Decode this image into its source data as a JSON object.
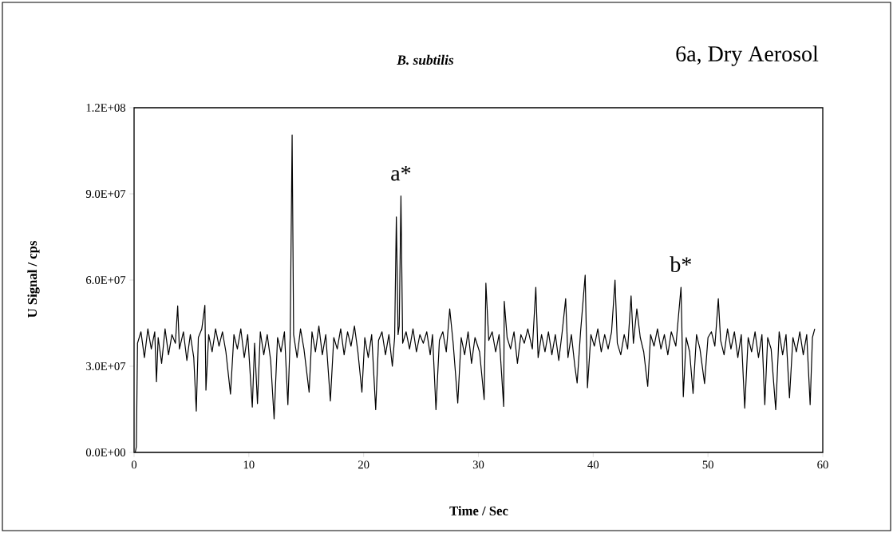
{
  "chart_data": {
    "type": "line",
    "title": "6a, Dry Aerosol",
    "subtitle": "B. subtilis",
    "xlabel": "Time / Sec",
    "ylabel": "U Signal / cps",
    "xlim": [
      0,
      60
    ],
    "xticks": [
      0,
      10,
      20,
      30,
      40,
      50,
      60
    ],
    "ylim": [
      0,
      120000000.0
    ],
    "yticks": [
      {
        "value": 0,
        "label": "0.0E+00"
      },
      {
        "value": 30000000.0,
        "label": "3.0E+07"
      },
      {
        "value": 60000000.0,
        "label": "6.0E+07"
      },
      {
        "value": 90000000.0,
        "label": "9.0E+07"
      },
      {
        "value": 120000000.0,
        "label": "1.2E+08"
      }
    ],
    "grid": false,
    "marker": "none",
    "line_style": "solid",
    "annotations": [
      {
        "text": "a*",
        "x": 23.25,
        "y": 89300000.0
      },
      {
        "text": "b*",
        "x": 47.65,
        "y": 57500000.0
      }
    ],
    "series": [
      {
        "color": "#000000",
        "x": [
          0.1,
          0.2,
          0.3,
          0.6,
          0.9,
          1.2,
          1.5,
          1.8,
          1.95,
          2.1,
          2.4,
          2.7,
          3.0,
          3.3,
          3.6,
          3.8,
          3.95,
          4.3,
          4.6,
          4.9,
          5.2,
          5.42,
          5.6,
          5.9,
          6.17,
          6.26,
          6.5,
          6.8,
          7.1,
          7.4,
          7.7,
          8.0,
          8.4,
          8.7,
          9.0,
          9.3,
          9.6,
          9.9,
          10.3,
          10.5,
          10.75,
          11.0,
          11.3,
          11.6,
          11.9,
          12.2,
          12.5,
          12.8,
          13.1,
          13.4,
          13.6,
          13.77,
          13.9,
          14.2,
          14.5,
          14.8,
          15.25,
          15.5,
          15.8,
          16.1,
          16.4,
          16.7,
          17.1,
          17.4,
          17.7,
          18.0,
          18.3,
          18.6,
          18.9,
          19.2,
          19.5,
          19.85,
          20.1,
          20.4,
          20.7,
          21.05,
          21.3,
          21.6,
          21.9,
          22.2,
          22.5,
          22.7,
          22.85,
          23.0,
          23.1,
          23.25,
          23.4,
          23.7,
          24.0,
          24.3,
          24.6,
          24.9,
          25.2,
          25.5,
          25.8,
          26.0,
          26.3,
          26.6,
          26.9,
          27.2,
          27.5,
          27.8,
          28.2,
          28.5,
          28.8,
          29.1,
          29.4,
          29.7,
          30.1,
          30.5,
          30.65,
          30.9,
          31.2,
          31.5,
          31.8,
          32.2,
          32.25,
          32.5,
          32.8,
          33.1,
          33.4,
          33.7,
          34.0,
          34.3,
          34.7,
          35.0,
          35.2,
          35.5,
          35.8,
          36.1,
          36.4,
          36.7,
          37.0,
          37.3,
          37.6,
          37.8,
          38.1,
          38.4,
          38.6,
          38.9,
          39.3,
          39.5,
          39.8,
          40.1,
          40.4,
          40.7,
          41.0,
          41.3,
          41.6,
          41.9,
          42.1,
          42.4,
          42.7,
          43.0,
          43.3,
          43.5,
          43.8,
          44.1,
          44.4,
          44.75,
          45.0,
          45.3,
          45.6,
          45.9,
          46.2,
          46.5,
          46.8,
          47.2,
          47.65,
          47.85,
          48.1,
          48.4,
          48.7,
          49.0,
          49.3,
          49.7,
          50.0,
          50.3,
          50.6,
          50.9,
          51.1,
          51.4,
          51.7,
          52.0,
          52.3,
          52.6,
          52.9,
          53.2,
          53.5,
          53.8,
          54.1,
          54.4,
          54.7,
          54.95,
          55.2,
          55.5,
          55.9,
          56.2,
          56.5,
          56.8,
          57.1,
          57.4,
          57.7,
          58.0,
          58.3,
          58.6,
          58.9,
          59.1,
          59.3
        ],
        "values": [
          0,
          2000000.0,
          38000000.0,
          42000000.0,
          33000000.0,
          43000000.0,
          36000000.0,
          42000000.0,
          24600000.0,
          40000000.0,
          31000000.0,
          43000000.0,
          34000000.0,
          41000000.0,
          38000000.0,
          51000000.0,
          36000000.0,
          42000000.0,
          32000000.0,
          41000000.0,
          33000000.0,
          14400000.0,
          40000000.0,
          43000000.0,
          51200000.0,
          21700000.0,
          41000000.0,
          35000000.0,
          43000000.0,
          37000000.0,
          42000000.0,
          35000000.0,
          20300000.0,
          41000000.0,
          36000000.0,
          43000000.0,
          33000000.0,
          41000000.0,
          15800000.0,
          38000000.0,
          17000000.0,
          42000000.0,
          34000000.0,
          41000000.0,
          32000000.0,
          11700000.0,
          40000000.0,
          35000000.0,
          42000000.0,
          16600000.0,
          40000000.0,
          110500000.0,
          41000000.0,
          33000000.0,
          43000000.0,
          36000000.0,
          21000000.0,
          42000000.0,
          35000000.0,
          44000000.0,
          34000000.0,
          41000000.0,
          17900000.0,
          40000000.0,
          36000000.0,
          43000000.0,
          34000000.0,
          42000000.0,
          37000000.0,
          44000000.0,
          35000000.0,
          21000000.0,
          40000000.0,
          33000000.0,
          41000000.0,
          14900000.0,
          39000000.0,
          42000000.0,
          34000000.0,
          41000000.0,
          30000000.0,
          40000000.0,
          82000000.0,
          41000000.0,
          44000000.0,
          89300000.0,
          38000000.0,
          42000000.0,
          36000000.0,
          43000000.0,
          35000000.0,
          41000000.0,
          38000000.0,
          42000000.0,
          34000000.0,
          41000000.0,
          14900000.0,
          39000000.0,
          42000000.0,
          35000000.0,
          50000000.0,
          38000000.0,
          17200000.0,
          40000000.0,
          34000000.0,
          42000000.0,
          31000000.0,
          40000000.0,
          35000000.0,
          18400000.0,
          58900000.0,
          39000000.0,
          42000000.0,
          35000000.0,
          41000000.0,
          16000000.0,
          52600000.0,
          40000000.0,
          36000000.0,
          42000000.0,
          31000000.0,
          41000000.0,
          38000000.0,
          43000000.0,
          36000000.0,
          57500000.0,
          33000000.0,
          41000000.0,
          35000000.0,
          42000000.0,
          34000000.0,
          41000000.0,
          32000000.0,
          42000000.0,
          53500000.0,
          33000000.0,
          41000000.0,
          30000000.0,
          24200000.0,
          42000000.0,
          61700000.0,
          22500000.0,
          41000000.0,
          37000000.0,
          43000000.0,
          35000000.0,
          41000000.0,
          36000000.0,
          42000000.0,
          60000000.0,
          38000000.0,
          34000000.0,
          41000000.0,
          36000000.0,
          54500000.0,
          38000000.0,
          50000000.0,
          40000000.0,
          35000000.0,
          23000000.0,
          41000000.0,
          37000000.0,
          43000000.0,
          36000000.0,
          41000000.0,
          34000000.0,
          42000000.0,
          37000000.0,
          57500000.0,
          19400000.0,
          40000000.0,
          35000000.0,
          20500000.0,
          41000000.0,
          36000000.0,
          24000000.0,
          40000000.0,
          42000000.0,
          37000000.0,
          53500000.0,
          39000000.0,
          34000000.0,
          43000000.0,
          36000000.0,
          42000000.0,
          33000000.0,
          41000000.0,
          15400000.0,
          40000000.0,
          35000000.0,
          42000000.0,
          33000000.0,
          41000000.0,
          16600000.0,
          40000000.0,
          36000000.0,
          14900000.0,
          42000000.0,
          34000000.0,
          41000000.0,
          19000000.0,
          40000000.0,
          35000000.0,
          42000000.0,
          34000000.0,
          41000000.0,
          16600000.0,
          40000000.0,
          43000000.0
        ]
      }
    ]
  }
}
